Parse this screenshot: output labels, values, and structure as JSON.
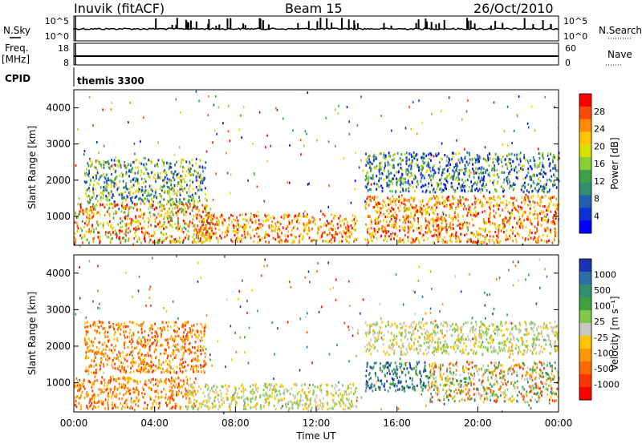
{
  "header": {
    "station": "Inuvik (fitACF)",
    "beam": "Beam 15",
    "date": "26/Oct/2010"
  },
  "top_panels": {
    "nsky_label": "N.Sky",
    "nsky_ticks": [
      "10^5",
      "10^0"
    ],
    "nsearch_label": "N.Search",
    "nsearch_ticks": [
      "10^5",
      "10^0"
    ],
    "freq_label": "Freq.",
    "freq_unit": "[MHz]",
    "freq_ticks": [
      "18",
      "8"
    ],
    "nave_label": "Nave",
    "nave_ticks": [
      "60",
      "0"
    ],
    "cpid_label": "CPID",
    "cpid_value": "themis 3300"
  },
  "chart_data": [
    {
      "type": "heatmap",
      "name": "power",
      "ylabel": "Slant Range [km]",
      "yticks": [
        1000,
        2000,
        3000,
        4000
      ],
      "ylim": [
        200,
        4500
      ],
      "xlim": [
        0,
        24
      ],
      "colorbar": {
        "label": "Power [dB]",
        "ticks": [
          "28",
          "24",
          "20",
          "16",
          "12",
          "8",
          "4"
        ],
        "colors": [
          "#ff0000",
          "#ff4800",
          "#ff8c00",
          "#ffc400",
          "#d8e000",
          "#8ccf30",
          "#3fa048",
          "#2f8f70",
          "#1f5fb0",
          "#0f2fd8",
          "#0000ff"
        ]
      },
      "regions": [
        {
          "t0": 0.0,
          "t1": 6.8,
          "r0": 300,
          "r1": 1400,
          "level": "mixed_high"
        },
        {
          "t0": 0.5,
          "t1": 6.5,
          "r0": 1400,
          "r1": 2600,
          "level": "mid"
        },
        {
          "t0": 6.0,
          "t1": 14.0,
          "r0": 300,
          "r1": 1100,
          "level": "strong"
        },
        {
          "t0": 14.4,
          "t1": 24.0,
          "r0": 300,
          "r1": 1600,
          "level": "strong"
        },
        {
          "t0": 14.4,
          "t1": 24.0,
          "r0": 1700,
          "r1": 2800,
          "level": "weak"
        }
      ]
    },
    {
      "type": "heatmap",
      "name": "velocity",
      "ylabel": "Slant Range [km]",
      "xlabel": "Time UT",
      "xticks": [
        "00:00",
        "04:00",
        "08:00",
        "12:00",
        "16:00",
        "20:00",
        "00:00"
      ],
      "yticks": [
        1000,
        2000,
        3000,
        4000
      ],
      "ylim": [
        200,
        4500
      ],
      "xlim": [
        0,
        24
      ],
      "colorbar": {
        "label": "Velocity [m s⁻¹]",
        "ticks": [
          "1000",
          "500",
          "100",
          "25",
          "-25",
          "-100",
          "-500",
          "-1000"
        ],
        "colors": [
          "#1a33b0",
          "#2a6fa8",
          "#2f8f70",
          "#3fa040",
          "#7fc84a",
          "#c8c8c0",
          "#ffc400",
          "#ff9800",
          "#ff6a00",
          "#ff3300",
          "#ff0000"
        ]
      },
      "regions": [
        {
          "t0": 0.5,
          "t1": 6.5,
          "r0": 1300,
          "r1": 2700,
          "level": "negative"
        },
        {
          "t0": 0.0,
          "t1": 6.0,
          "r0": 300,
          "r1": 1200,
          "level": "negative"
        },
        {
          "t0": 5.5,
          "t1": 14.0,
          "r0": 300,
          "r1": 1000,
          "level": "near_zero"
        },
        {
          "t0": 14.4,
          "t1": 17.5,
          "r0": 800,
          "r1": 1600,
          "level": "positive"
        },
        {
          "t0": 17.5,
          "t1": 24.0,
          "r0": 500,
          "r1": 1600,
          "level": "mixed"
        },
        {
          "t0": 14.4,
          "t1": 24.0,
          "r0": 1800,
          "r1": 2700,
          "level": "near_zero"
        }
      ]
    }
  ]
}
